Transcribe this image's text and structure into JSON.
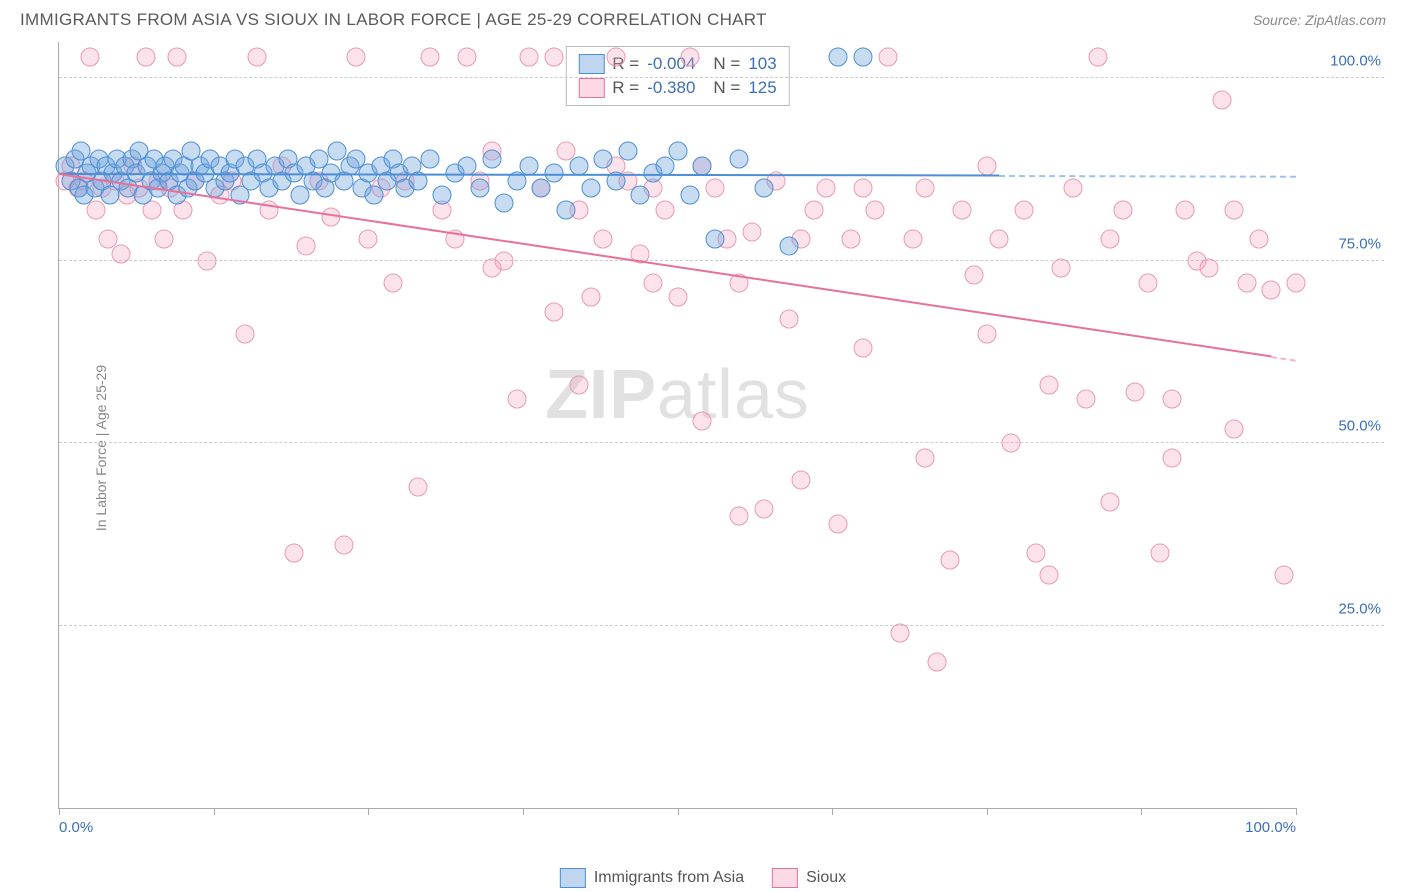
{
  "title": "IMMIGRANTS FROM ASIA VS SIOUX IN LABOR FORCE | AGE 25-29 CORRELATION CHART",
  "source": "Source: ZipAtlas.com",
  "ylabel": "In Labor Force | Age 25-29",
  "watermark_bold": "ZIP",
  "watermark_rest": "atlas",
  "chart": {
    "type": "scatter_correlation",
    "background_color": "#ffffff",
    "grid_color": "#cccccc",
    "axis_color": "#aaaaaa",
    "label_color": "#3b6fb6",
    "xlim": [
      0,
      100
    ],
    "ylim": [
      0,
      105
    ],
    "ytick_values": [
      25,
      50,
      75,
      100
    ],
    "ytick_labels": [
      "25.0%",
      "50.0%",
      "75.0%",
      "100.0%"
    ],
    "xtick_positions": [
      0,
      12.5,
      25,
      37.5,
      50,
      62.5,
      75,
      87.5,
      100
    ],
    "xtick_labels": {
      "0": "0.0%",
      "100": "100.0%"
    },
    "marker_radius": 9.5,
    "marker_opacity": 0.4,
    "series": [
      {
        "name": "Immigrants from Asia",
        "fill": "rgba(115,165,220,0.40)",
        "stroke": "#4d8fd6",
        "R": "-0.004",
        "N": "103",
        "trend": {
          "x0": 0,
          "y0": 87,
          "x_solid_end": 76,
          "y_solid_end": 86.8,
          "x1": 100,
          "y1": 86.7
        },
        "points": [
          [
            0.5,
            88
          ],
          [
            1,
            86
          ],
          [
            1.3,
            89
          ],
          [
            1.6,
            85
          ],
          [
            1.8,
            90
          ],
          [
            2,
            84
          ],
          [
            2.3,
            87
          ],
          [
            2.6,
            88
          ],
          [
            2.9,
            85
          ],
          [
            3.2,
            89
          ],
          [
            3.5,
            86
          ],
          [
            3.8,
            88
          ],
          [
            4.1,
            84
          ],
          [
            4.4,
            87
          ],
          [
            4.7,
            89
          ],
          [
            5,
            86
          ],
          [
            5.3,
            88
          ],
          [
            5.6,
            85
          ],
          [
            5.9,
            89
          ],
          [
            6.2,
            87
          ],
          [
            6.5,
            90
          ],
          [
            6.8,
            84
          ],
          [
            7.1,
            88
          ],
          [
            7.4,
            86
          ],
          [
            7.7,
            89
          ],
          [
            8,
            85
          ],
          [
            8.3,
            87
          ],
          [
            8.6,
            88
          ],
          [
            8.9,
            86
          ],
          [
            9.2,
            89
          ],
          [
            9.5,
            84
          ],
          [
            9.8,
            87
          ],
          [
            10.1,
            88
          ],
          [
            10.4,
            85
          ],
          [
            10.7,
            90
          ],
          [
            11,
            86
          ],
          [
            11.4,
            88
          ],
          [
            11.8,
            87
          ],
          [
            12.2,
            89
          ],
          [
            12.6,
            85
          ],
          [
            13,
            88
          ],
          [
            13.4,
            86
          ],
          [
            13.8,
            87
          ],
          [
            14.2,
            89
          ],
          [
            14.6,
            84
          ],
          [
            15,
            88
          ],
          [
            15.5,
            86
          ],
          [
            16,
            89
          ],
          [
            16.5,
            87
          ],
          [
            17,
            85
          ],
          [
            17.5,
            88
          ],
          [
            18,
            86
          ],
          [
            18.5,
            89
          ],
          [
            19,
            87
          ],
          [
            19.5,
            84
          ],
          [
            20,
            88
          ],
          [
            20.5,
            86
          ],
          [
            21,
            89
          ],
          [
            21.5,
            85
          ],
          [
            22,
            87
          ],
          [
            22.5,
            90
          ],
          [
            23,
            86
          ],
          [
            23.5,
            88
          ],
          [
            24,
            89
          ],
          [
            24.5,
            85
          ],
          [
            25,
            87
          ],
          [
            25.5,
            84
          ],
          [
            26,
            88
          ],
          [
            26.5,
            86
          ],
          [
            27,
            89
          ],
          [
            27.5,
            87
          ],
          [
            28,
            85
          ],
          [
            28.5,
            88
          ],
          [
            29,
            86
          ],
          [
            30,
            89
          ],
          [
            31,
            84
          ],
          [
            32,
            87
          ],
          [
            33,
            88
          ],
          [
            34,
            85
          ],
          [
            35,
            89
          ],
          [
            36,
            83
          ],
          [
            37,
            86
          ],
          [
            38,
            88
          ],
          [
            39,
            85
          ],
          [
            40,
            87
          ],
          [
            41,
            82
          ],
          [
            42,
            88
          ],
          [
            43,
            85
          ],
          [
            44,
            89
          ],
          [
            45,
            86
          ],
          [
            46,
            90
          ],
          [
            47,
            84
          ],
          [
            48,
            87
          ],
          [
            49,
            88
          ],
          [
            50,
            90
          ],
          [
            51,
            84
          ],
          [
            52,
            88
          ],
          [
            53,
            78
          ],
          [
            55,
            89
          ],
          [
            57,
            85
          ],
          [
            59,
            77
          ],
          [
            63,
            103
          ],
          [
            65,
            103
          ]
        ]
      },
      {
        "name": "Sioux",
        "fill": "rgba(245,160,190,0.30)",
        "stroke": "#e87099",
        "R": "-0.380",
        "N": "125",
        "trend": {
          "x0": 0,
          "y0": 87,
          "x_solid_end": 98,
          "y_solid_end": 62,
          "x1": 100,
          "y1": 61.5
        },
        "points": [
          [
            0.5,
            86
          ],
          [
            1,
            88
          ],
          [
            1.5,
            85
          ],
          [
            2,
            86
          ],
          [
            2.5,
            103
          ],
          [
            3,
            82
          ],
          [
            3.5,
            85
          ],
          [
            4,
            78
          ],
          [
            4.5,
            86
          ],
          [
            5,
            76
          ],
          [
            5.5,
            84
          ],
          [
            6,
            88
          ],
          [
            6.5,
            85
          ],
          [
            7,
            103
          ],
          [
            7.5,
            82
          ],
          [
            8,
            86
          ],
          [
            8.5,
            78
          ],
          [
            9,
            85
          ],
          [
            9.5,
            103
          ],
          [
            10,
            82
          ],
          [
            11,
            86
          ],
          [
            12,
            75
          ],
          [
            13,
            84
          ],
          [
            14,
            86
          ],
          [
            15,
            65
          ],
          [
            16,
            103
          ],
          [
            17,
            82
          ],
          [
            18,
            88
          ],
          [
            19,
            35
          ],
          [
            20,
            77
          ],
          [
            21,
            86
          ],
          [
            22,
            81
          ],
          [
            23,
            36
          ],
          [
            24,
            103
          ],
          [
            25,
            78
          ],
          [
            26,
            85
          ],
          [
            27,
            72
          ],
          [
            28,
            86
          ],
          [
            29,
            44
          ],
          [
            30,
            103
          ],
          [
            31,
            82
          ],
          [
            32,
            78
          ],
          [
            33,
            103
          ],
          [
            34,
            86
          ],
          [
            35,
            90
          ],
          [
            36,
            75
          ],
          [
            37,
            56
          ],
          [
            38,
            103
          ],
          [
            39,
            85
          ],
          [
            40,
            103
          ],
          [
            41,
            90
          ],
          [
            42,
            82
          ],
          [
            43,
            70
          ],
          [
            44,
            78
          ],
          [
            45,
            103
          ],
          [
            46,
            86
          ],
          [
            47,
            76
          ],
          [
            48,
            72
          ],
          [
            49,
            82
          ],
          [
            50,
            70
          ],
          [
            51,
            103
          ],
          [
            52,
            53
          ],
          [
            53,
            85
          ],
          [
            54,
            78
          ],
          [
            55,
            72
          ],
          [
            56,
            79
          ],
          [
            57,
            41
          ],
          [
            58,
            86
          ],
          [
            59,
            67
          ],
          [
            60,
            78
          ],
          [
            61,
            82
          ],
          [
            62,
            85
          ],
          [
            63,
            39
          ],
          [
            64,
            78
          ],
          [
            65,
            63
          ],
          [
            66,
            82
          ],
          [
            67,
            103
          ],
          [
            68,
            24
          ],
          [
            69,
            78
          ],
          [
            70,
            85
          ],
          [
            71,
            20
          ],
          [
            72,
            34
          ],
          [
            73,
            82
          ],
          [
            74,
            73
          ],
          [
            75,
            65
          ],
          [
            76,
            78
          ],
          [
            77,
            50
          ],
          [
            78,
            82
          ],
          [
            79,
            35
          ],
          [
            80,
            32
          ],
          [
            81,
            74
          ],
          [
            82,
            85
          ],
          [
            83,
            56
          ],
          [
            84,
            103
          ],
          [
            85,
            78
          ],
          [
            86,
            82
          ],
          [
            87,
            57
          ],
          [
            88,
            72
          ],
          [
            89,
            35
          ],
          [
            90,
            56
          ],
          [
            91,
            82
          ],
          [
            92,
            75
          ],
          [
            93,
            74
          ],
          [
            94,
            97
          ],
          [
            95,
            52
          ],
          [
            96,
            72
          ],
          [
            97,
            78
          ],
          [
            98,
            71
          ],
          [
            99,
            32
          ],
          [
            100,
            72
          ],
          [
            42,
            58
          ],
          [
            55,
            40
          ],
          [
            48,
            85
          ],
          [
            52,
            88
          ],
          [
            60,
            45
          ],
          [
            65,
            85
          ],
          [
            70,
            48
          ],
          [
            75,
            88
          ],
          [
            80,
            58
          ],
          [
            85,
            42
          ],
          [
            90,
            48
          ],
          [
            95,
            82
          ],
          [
            35,
            74
          ],
          [
            40,
            68
          ],
          [
            45,
            88
          ]
        ]
      }
    ],
    "bottom_legend": [
      {
        "label": "Immigrants from Asia",
        "swatch": "blue"
      },
      {
        "label": "Sioux",
        "swatch": "pink"
      }
    ]
  }
}
